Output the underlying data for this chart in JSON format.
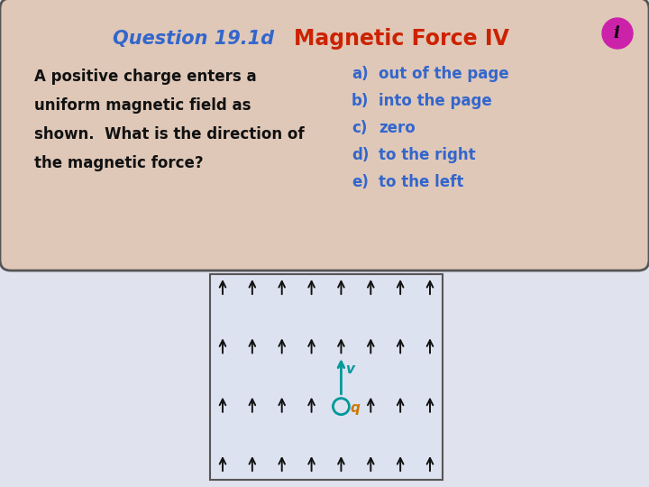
{
  "title_part1": "Question 19.1d",
  "title_part2": "Magnetic Force IV",
  "bg_box_color": "#dfc8b8",
  "bg_page_color": "#e0e2ee",
  "box_text_lines": [
    "A positive charge enters a",
    "uniform magnetic field as",
    "shown.  What is the direction of",
    "the magnetic force?"
  ],
  "choices": [
    [
      "a)",
      "out of the page"
    ],
    [
      "b)",
      "into the page"
    ],
    [
      "c)",
      "zero"
    ],
    [
      "d)",
      "to the right"
    ],
    [
      "e)",
      "to the left"
    ]
  ],
  "title_color1": "#3366cc",
  "title_color2": "#cc2200",
  "choices_color": "#3366cc",
  "question_color": "#111111",
  "arrow_color": "#111111",
  "velocity_color": "#009999",
  "charge_label_color": "#009999",
  "charge_q_color": "#cc7700",
  "diagram_bg": "#dde2f0",
  "diagram_border": "#555555",
  "icon_circle_color": "#cc22aa",
  "icon_text_color": "#111111"
}
